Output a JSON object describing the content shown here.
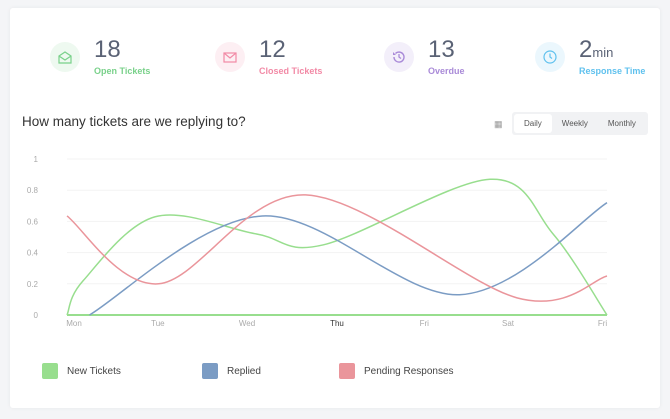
{
  "stats": [
    {
      "value": "18",
      "unit": "",
      "label": "Open Tickets",
      "color": "#79d18a",
      "bg": "#eef9f0",
      "icon": "open-envelope-icon"
    },
    {
      "value": "12",
      "unit": "",
      "label": "Closed Tickets",
      "color": "#f28aa6",
      "bg": "#fdeff3",
      "icon": "envelope-icon"
    },
    {
      "value": "13",
      "unit": "",
      "label": "Overdue",
      "color": "#a98ad8",
      "bg": "#f3effa",
      "icon": "history-icon"
    },
    {
      "value": "2",
      "unit": "min",
      "label": "Response Time",
      "color": "#5fc1ee",
      "bg": "#ebf7fd",
      "icon": "clock-icon"
    }
  ],
  "chart_title": "How many tickets are we replying to?",
  "tabs": [
    {
      "label": "Daily",
      "active": true
    },
    {
      "label": "Weekly"
    },
    {
      "label": "Monthly"
    }
  ],
  "chart_data": {
    "type": "line",
    "categories": [
      "Mon",
      "Tue",
      "Wed",
      "Thu",
      "Fri",
      "Sat",
      "Fri"
    ],
    "yticks": [
      "0",
      "0.2",
      "0.4",
      "0.6",
      "0.8",
      "1"
    ],
    "ylim": [
      0,
      1
    ],
    "grid": true,
    "legend_placement": "bottom",
    "series": [
      {
        "name": "New Tickets",
        "color": "#98de8e",
        "points": [
          [
            0,
            0
          ],
          [
            0.18,
            0.22
          ],
          [
            0.98,
            0.63
          ],
          [
            2.1,
            0.52
          ],
          [
            2.85,
            0.45
          ],
          [
            4.7,
            0.87
          ],
          [
            5.4,
            0.52
          ],
          [
            6,
            0
          ]
        ]
      },
      {
        "name": "Replied",
        "color": "#7b9cc4",
        "points": [
          [
            0.25,
            0
          ],
          [
            2.17,
            0.635
          ],
          [
            4.36,
            0.13
          ],
          [
            6,
            0.72
          ]
        ]
      },
      {
        "name": "Pending Responses",
        "color": "#ea959b",
        "points": [
          [
            0,
            0.635
          ],
          [
            1.02,
            0.2
          ],
          [
            2.65,
            0.77
          ],
          [
            5.0,
            0.11
          ],
          [
            6,
            0.25
          ]
        ]
      }
    ]
  }
}
